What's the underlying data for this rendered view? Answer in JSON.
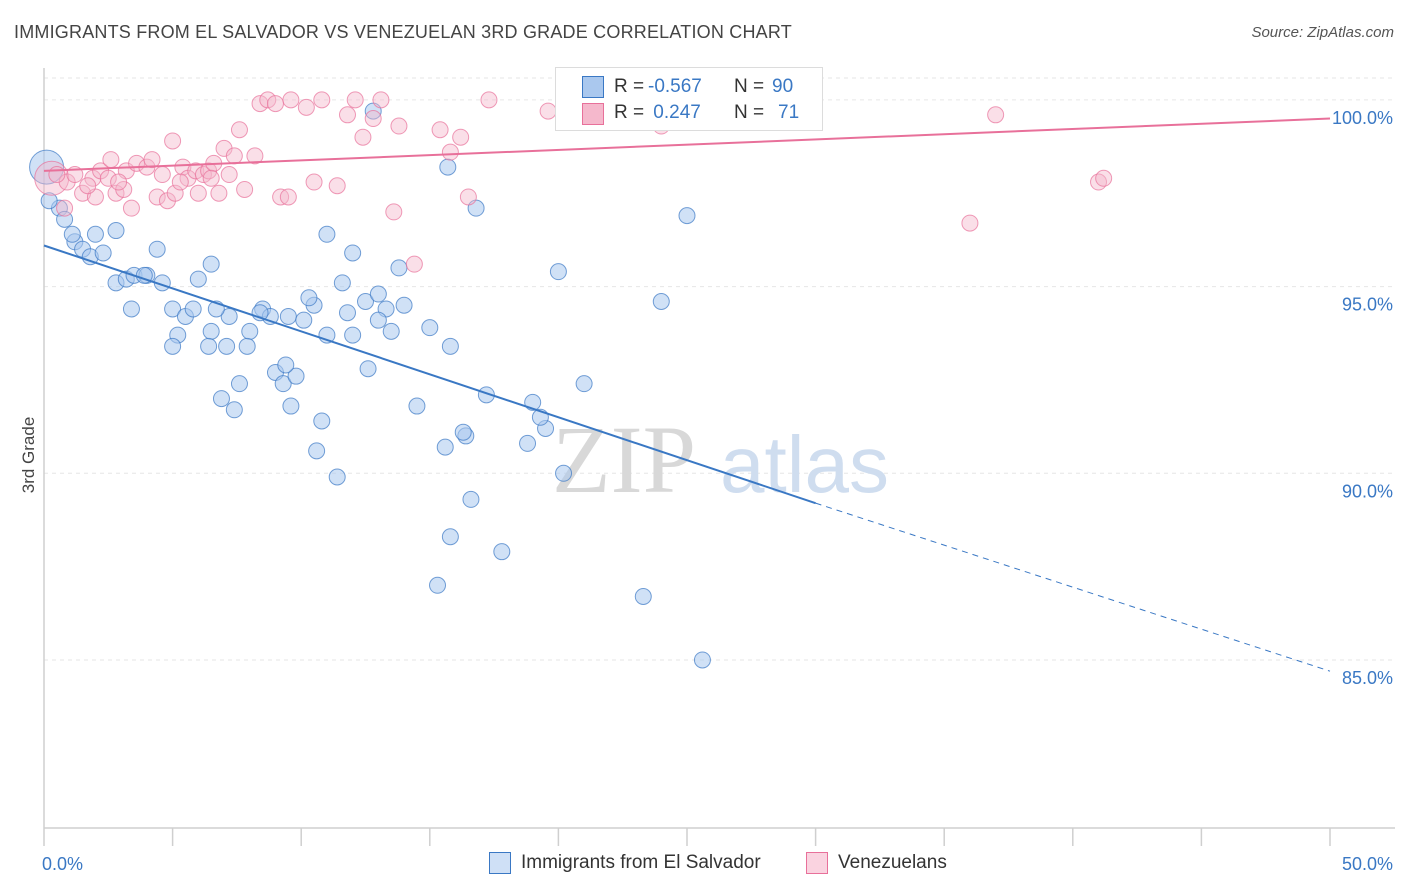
{
  "title": "IMMIGRANTS FROM EL SALVADOR VS VENEZUELAN 3RD GRADE CORRELATION CHART",
  "source": "Source: ZipAtlas.com",
  "watermark": {
    "zip": "ZIP",
    "atlas": "atlas"
  },
  "legend": {
    "rows": [
      {
        "r_label": "R =",
        "r_value": "-0.567",
        "n_label": "N =",
        "n_value": "90"
      },
      {
        "r_label": "R =",
        "r_value": " 0.247",
        "n_label": "N =",
        "n_value": "71"
      }
    ]
  },
  "colors": {
    "blue": "#3a78c4",
    "blue_fill": "#aac8ee",
    "pink": "#e8709a",
    "pink_fill": "#f5b8cc",
    "grid": "#e6e6e6"
  },
  "chart_data": {
    "type": "scatter",
    "title": "IMMIGRANTS FROM EL SALVADOR VS VENEZUELAN 3RD GRADE CORRELATION CHART",
    "xlabel": "",
    "ylabel": "3rd Grade",
    "xlim": [
      0,
      50
    ],
    "ylim": [
      80.5,
      100.8
    ],
    "x_tick_labels": [
      {
        "value": 0,
        "label": "0.0%"
      },
      {
        "value": 50,
        "label": "50.0%"
      }
    ],
    "x_minor_ticks": [
      0,
      5,
      10,
      15,
      20,
      25,
      30,
      35,
      40,
      45,
      50
    ],
    "y_ticks": [
      {
        "value": 100,
        "label": "100.0%"
      },
      {
        "value": 95,
        "label": "95.0%"
      },
      {
        "value": 90,
        "label": "90.0%"
      },
      {
        "value": 85,
        "label": "85.0%"
      }
    ],
    "grid": true,
    "legend_position": "top-center",
    "series": [
      {
        "name": "Immigrants from El Salvador",
        "color": "#3a78c4",
        "trend": {
          "x0": 0,
          "y0": 96.1,
          "x1": 30,
          "y1": 89.2,
          "dashed_to_x": 50,
          "dashed_to_y": 84.7
        },
        "points": [
          [
            0.1,
            98.2,
            1
          ],
          [
            0.6,
            97.1,
            0
          ],
          [
            0.8,
            96.8,
            0
          ],
          [
            1.2,
            96.2,
            0
          ],
          [
            1.1,
            96.4,
            0
          ],
          [
            1.5,
            96.0,
            0
          ],
          [
            2.0,
            96.4,
            0
          ],
          [
            1.8,
            95.8,
            0
          ],
          [
            2.3,
            95.9,
            0
          ],
          [
            2.8,
            95.1,
            0
          ],
          [
            3.2,
            95.2,
            0
          ],
          [
            3.5,
            95.3,
            0
          ],
          [
            2.8,
            96.5,
            0
          ],
          [
            4.0,
            95.3,
            0
          ],
          [
            4.4,
            96.0,
            0
          ],
          [
            4.6,
            95.1,
            0
          ],
          [
            3.4,
            94.4,
            0
          ],
          [
            3.9,
            95.3,
            0
          ],
          [
            5.0,
            94.4,
            0
          ],
          [
            5.5,
            94.2,
            0
          ],
          [
            5.2,
            93.7,
            0
          ],
          [
            5.8,
            94.4,
            0
          ],
          [
            5.0,
            93.4,
            0
          ],
          [
            6.5,
            93.8,
            0
          ],
          [
            6.0,
            95.2,
            0
          ],
          [
            6.5,
            95.6,
            0
          ],
          [
            6.4,
            93.4,
            0
          ],
          [
            7.2,
            94.2,
            0
          ],
          [
            6.7,
            94.4,
            0
          ],
          [
            7.1,
            93.4,
            0
          ],
          [
            7.6,
            92.4,
            0
          ],
          [
            7.4,
            91.7,
            0
          ],
          [
            6.9,
            92.0,
            0
          ],
          [
            8.0,
            93.8,
            0
          ],
          [
            8.5,
            94.4,
            0
          ],
          [
            8.8,
            94.2,
            0
          ],
          [
            8.4,
            94.3,
            0
          ],
          [
            9.0,
            92.7,
            0
          ],
          [
            9.3,
            92.4,
            0
          ],
          [
            9.5,
            94.2,
            0
          ],
          [
            9.6,
            91.8,
            0
          ],
          [
            9.8,
            92.6,
            0
          ],
          [
            10.1,
            94.1,
            0
          ],
          [
            10.5,
            94.5,
            0
          ],
          [
            10.3,
            94.7,
            0
          ],
          [
            10.6,
            90.6,
            0
          ],
          [
            10.8,
            91.4,
            0
          ],
          [
            11.0,
            93.7,
            0
          ],
          [
            11.4,
            89.9,
            0
          ],
          [
            11.6,
            95.1,
            0
          ],
          [
            11.8,
            94.3,
            0
          ],
          [
            12.0,
            93.7,
            0
          ],
          [
            12.0,
            95.9,
            0
          ],
          [
            12.5,
            94.6,
            0
          ],
          [
            12.6,
            92.8,
            0
          ],
          [
            13.0,
            94.8,
            0
          ],
          [
            13.3,
            94.4,
            0
          ],
          [
            13.0,
            94.1,
            0
          ],
          [
            13.5,
            93.8,
            0
          ],
          [
            13.8,
            95.5,
            0
          ],
          [
            14.0,
            94.5,
            0
          ],
          [
            14.5,
            91.8,
            0
          ],
          [
            15.0,
            93.9,
            0
          ],
          [
            15.6,
            90.7,
            0
          ],
          [
            15.8,
            93.4,
            0
          ],
          [
            15.8,
            88.3,
            0
          ],
          [
            16.4,
            91.0,
            0
          ],
          [
            16.3,
            91.1,
            0
          ],
          [
            16.6,
            89.3,
            0
          ],
          [
            17.2,
            92.1,
            0
          ],
          [
            17.8,
            87.9,
            0
          ],
          [
            18.8,
            90.8,
            0
          ],
          [
            19.0,
            91.9,
            0
          ],
          [
            19.5,
            91.2,
            0
          ],
          [
            19.3,
            91.5,
            0
          ],
          [
            20.0,
            95.4,
            0
          ],
          [
            20.2,
            90.0,
            0
          ],
          [
            21.0,
            92.4,
            0
          ],
          [
            12.8,
            99.7,
            0
          ],
          [
            15.7,
            98.2,
            0
          ],
          [
            16.8,
            97.1,
            0
          ],
          [
            15.3,
            87.0,
            0
          ],
          [
            23.3,
            86.7,
            0
          ],
          [
            24.0,
            94.6,
            0
          ],
          [
            25.0,
            96.9,
            0
          ],
          [
            25.6,
            85.0,
            0
          ],
          [
            11.0,
            96.4,
            0
          ],
          [
            0.2,
            97.3,
            0
          ],
          [
            7.9,
            93.4,
            0
          ],
          [
            9.4,
            92.9,
            0
          ]
        ]
      },
      {
        "name": "Venezuelans",
        "color": "#e8709a",
        "trend": {
          "x0": 0,
          "y0": 98.1,
          "x1": 50,
          "y1": 99.5
        },
        "points": [
          [
            0.3,
            97.9,
            1
          ],
          [
            0.8,
            97.1,
            0
          ],
          [
            0.9,
            97.8,
            0
          ],
          [
            1.2,
            98.0,
            0
          ],
          [
            1.5,
            97.5,
            0
          ],
          [
            1.9,
            97.9,
            0
          ],
          [
            2.0,
            97.4,
            0
          ],
          [
            2.2,
            98.1,
            0
          ],
          [
            2.5,
            97.9,
            0
          ],
          [
            2.6,
            98.4,
            0
          ],
          [
            2.8,
            97.5,
            0
          ],
          [
            3.1,
            97.6,
            0
          ],
          [
            3.2,
            98.1,
            0
          ],
          [
            3.4,
            97.1,
            0
          ],
          [
            3.6,
            98.3,
            0
          ],
          [
            4.0,
            98.2,
            0
          ],
          [
            4.2,
            98.4,
            0
          ],
          [
            4.4,
            97.4,
            0
          ],
          [
            4.6,
            98.0,
            0
          ],
          [
            4.8,
            97.3,
            0
          ],
          [
            5.0,
            98.9,
            0
          ],
          [
            5.1,
            97.5,
            0
          ],
          [
            5.4,
            98.2,
            0
          ],
          [
            5.6,
            97.9,
            0
          ],
          [
            5.9,
            98.1,
            0
          ],
          [
            6.0,
            97.5,
            0
          ],
          [
            6.2,
            98.0,
            0
          ],
          [
            6.4,
            98.1,
            0
          ],
          [
            6.6,
            98.3,
            0
          ],
          [
            6.8,
            97.5,
            0
          ],
          [
            7.0,
            98.7,
            0
          ],
          [
            7.4,
            98.5,
            0
          ],
          [
            7.6,
            99.2,
            0
          ],
          [
            7.8,
            97.6,
            0
          ],
          [
            8.2,
            98.5,
            0
          ],
          [
            8.4,
            99.9,
            0
          ],
          [
            8.7,
            100.0,
            0
          ],
          [
            9.0,
            99.9,
            0
          ],
          [
            9.2,
            97.4,
            0
          ],
          [
            9.6,
            100.0,
            0
          ],
          [
            10.2,
            99.8,
            0
          ],
          [
            10.5,
            97.8,
            0
          ],
          [
            10.8,
            100.0,
            0
          ],
          [
            11.4,
            97.7,
            0
          ],
          [
            11.8,
            99.6,
            0
          ],
          [
            12.1,
            100.0,
            0
          ],
          [
            12.4,
            99.0,
            0
          ],
          [
            12.8,
            99.5,
            0
          ],
          [
            13.1,
            100.0,
            0
          ],
          [
            13.6,
            97.0,
            0
          ],
          [
            13.8,
            99.3,
            0
          ],
          [
            14.4,
            95.6,
            0
          ],
          [
            15.4,
            99.2,
            0
          ],
          [
            15.8,
            98.6,
            0
          ],
          [
            16.2,
            99.0,
            0
          ],
          [
            16.5,
            97.4,
            0
          ],
          [
            17.3,
            100.0,
            0
          ],
          [
            19.6,
            99.7,
            0
          ],
          [
            20.2,
            99.8,
            0
          ],
          [
            24.0,
            99.3,
            0
          ],
          [
            36.0,
            96.7,
            0
          ],
          [
            37.0,
            99.6,
            0
          ],
          [
            41.0,
            97.8,
            0
          ],
          [
            41.2,
            97.9,
            0
          ],
          [
            0.5,
            98.0,
            0
          ],
          [
            1.7,
            97.7,
            0
          ],
          [
            6.5,
            97.9,
            0
          ],
          [
            5.3,
            97.8,
            0
          ],
          [
            2.9,
            97.8,
            0
          ],
          [
            7.2,
            98.0,
            0
          ],
          [
            9.5,
            97.4,
            0
          ]
        ]
      }
    ]
  },
  "bottom_legend": [
    "Immigrants from El Salvador",
    "Venezuelans"
  ]
}
